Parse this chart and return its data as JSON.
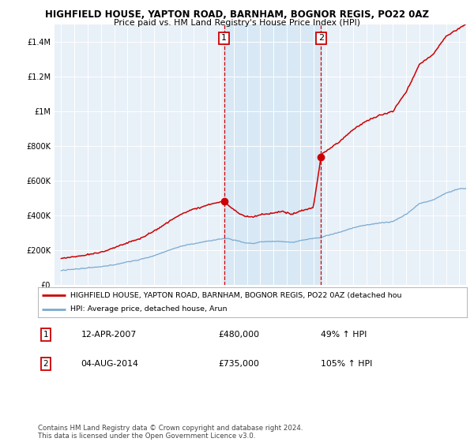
{
  "title": "HIGHFIELD HOUSE, YAPTON ROAD, BARNHAM, BOGNOR REGIS, PO22 0AZ",
  "subtitle": "Price paid vs. HM Land Registry's House Price Index (HPI)",
  "legend_line1": "HIGHFIELD HOUSE, YAPTON ROAD, BARNHAM, BOGNOR REGIS, PO22 0AZ (detached hou",
  "legend_line2": "HPI: Average price, detached house, Arun",
  "sale1_date": 2007.28,
  "sale1_price": 480000,
  "sale1_label": "1",
  "sale1_text": "12-APR-2007",
  "sale1_pct": "49% ↑ HPI",
  "sale2_date": 2014.58,
  "sale2_price": 735000,
  "sale2_label": "2",
  "sale2_text": "04-AUG-2014",
  "sale2_pct": "105% ↑ HPI",
  "ylim": [
    0,
    1500000
  ],
  "xlim": [
    1994.5,
    2025.5
  ],
  "red_color": "#cc0000",
  "blue_color": "#7aaad0",
  "highlight_color": "#d8e8f5",
  "background_chart": "#e8f0f8",
  "footnote": "Contains HM Land Registry data © Crown copyright and database right 2024.\nThis data is licensed under the Open Government Licence v3.0."
}
